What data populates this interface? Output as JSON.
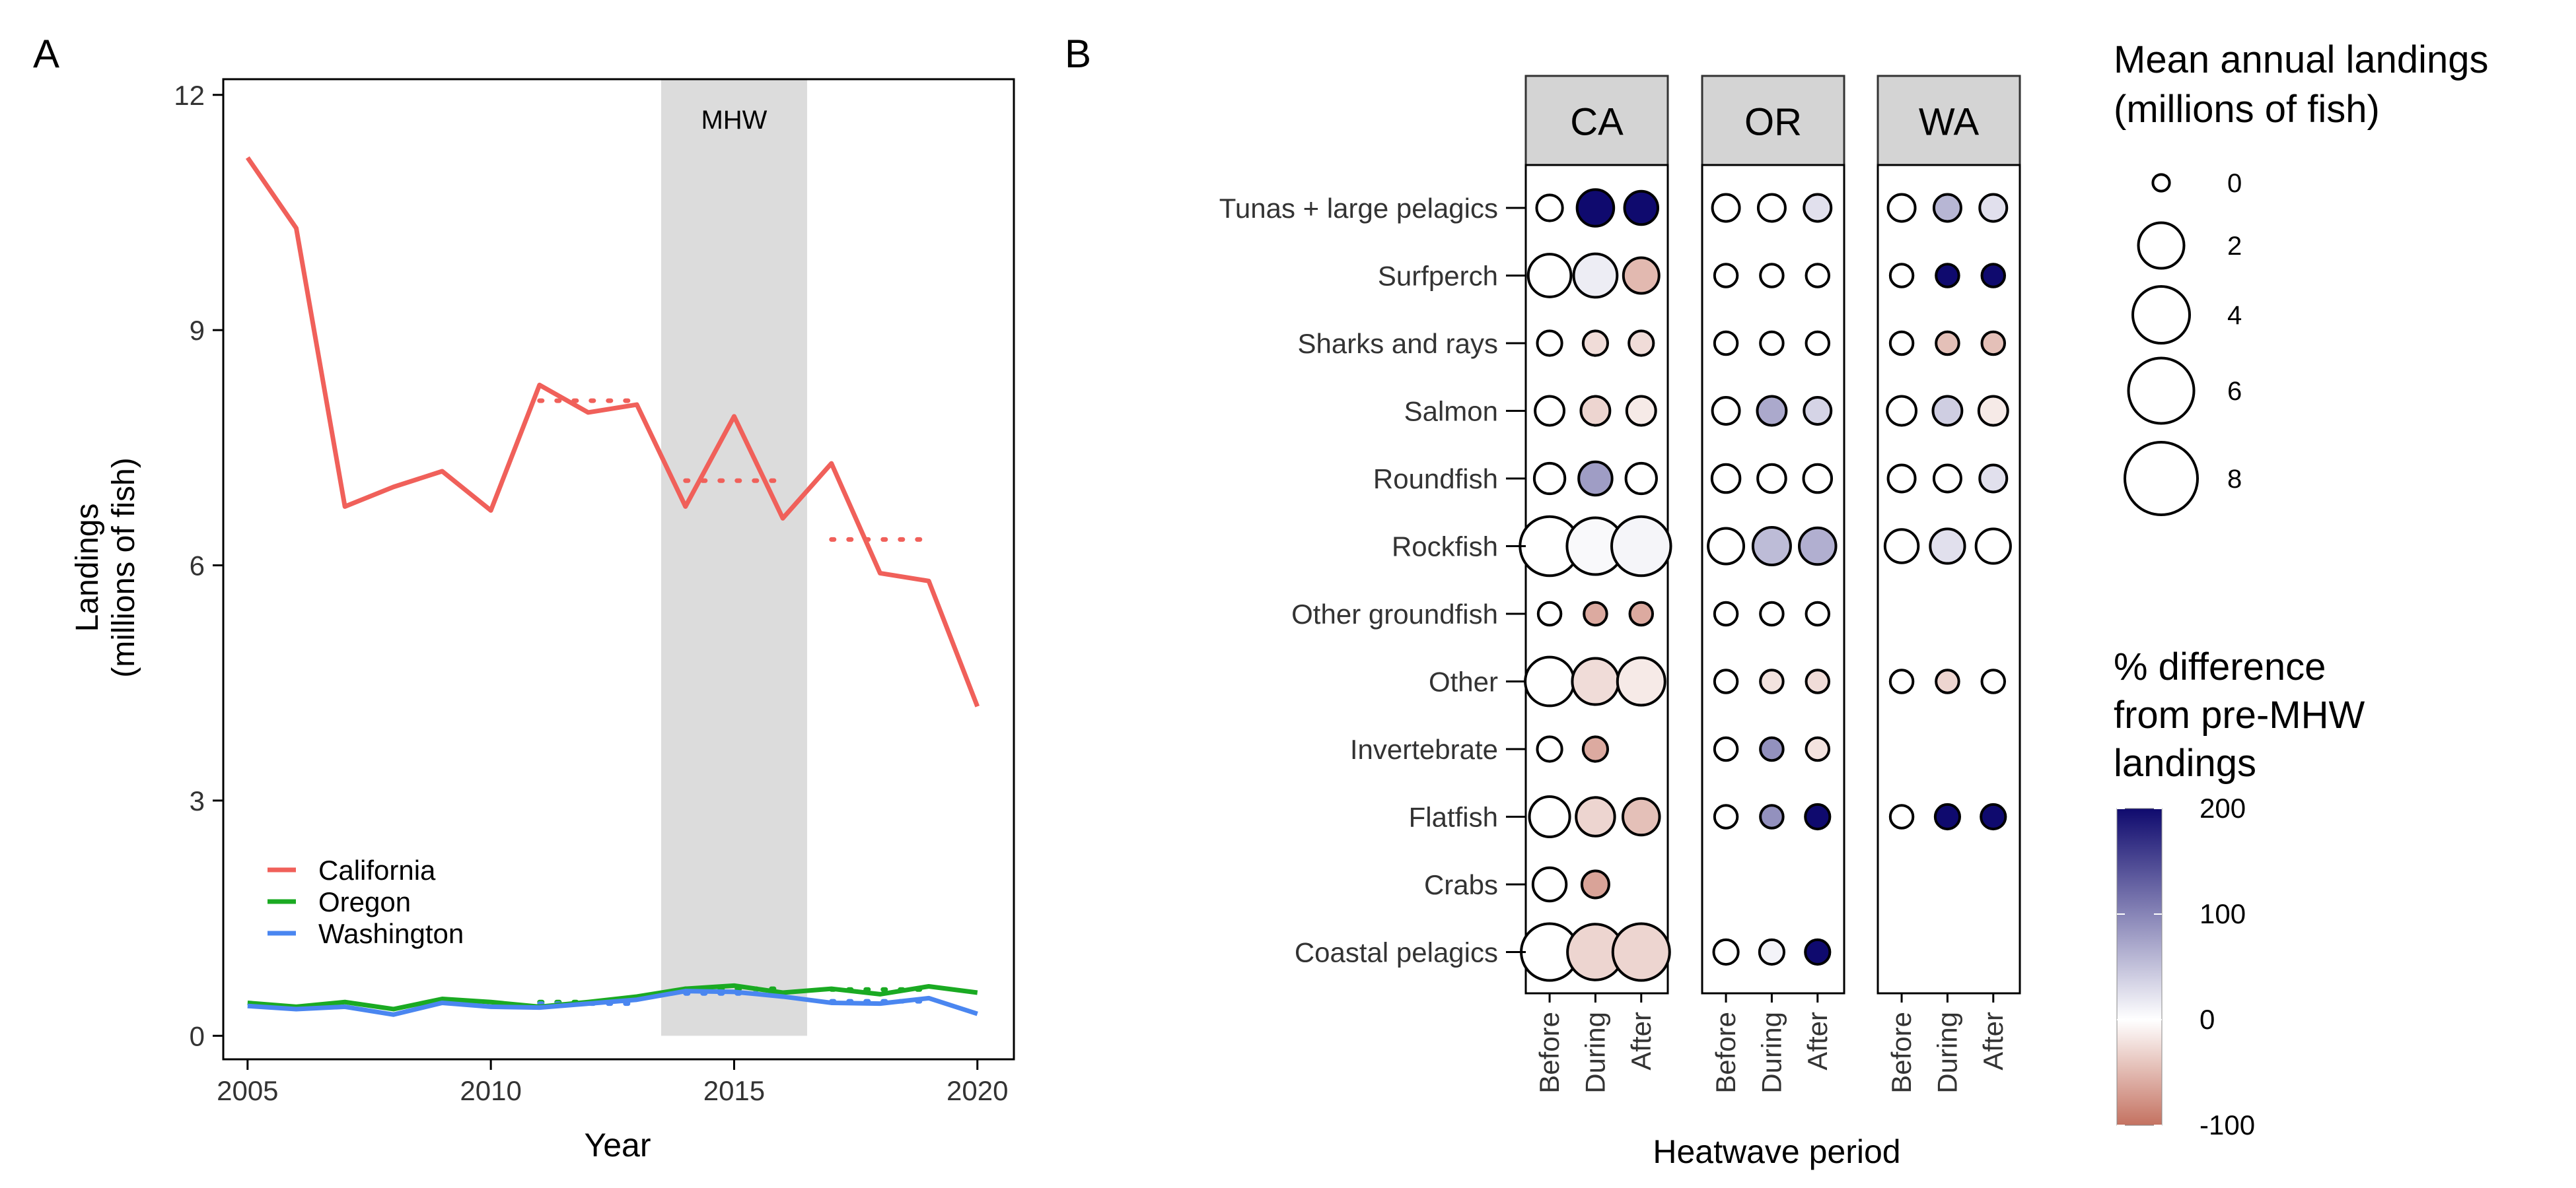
{
  "panel_labels": {
    "a": "A",
    "b": "B"
  },
  "chart_data": [
    {
      "type": "line",
      "panel": "A",
      "xlabel": "Year",
      "ylabel_line1": "Landings",
      "ylabel_line2": "(millions of fish)",
      "xlim": [
        2004.5,
        2020.75
      ],
      "ylim": [
        -0.3,
        12.2
      ],
      "x_ticks": [
        2005,
        2010,
        2015,
        2020
      ],
      "y_ticks": [
        0,
        3,
        6,
        9,
        12
      ],
      "grid": false,
      "legend_position": "bottom-left",
      "shaded_region": {
        "label": "MHW",
        "x_start": 2013.5,
        "x_end": 2016.5,
        "color": "#dcdcdc"
      },
      "x": [
        2005,
        2006,
        2007,
        2008,
        2009,
        2010,
        2011,
        2012,
        2013,
        2014,
        2015,
        2016,
        2017,
        2018,
        2019,
        2020
      ],
      "series": [
        {
          "name": "California",
          "color": "#f0605a",
          "values": [
            11.2,
            10.3,
            6.75,
            7.0,
            7.2,
            6.7,
            8.3,
            7.95,
            8.05,
            6.75,
            7.9,
            6.6,
            7.3,
            5.9,
            5.8,
            4.2
          ],
          "period_means": [
            {
              "x_start": 2011,
              "x_end": 2013,
              "value": 8.1
            },
            {
              "x_start": 2014,
              "x_end": 2016,
              "value": 7.08
            },
            {
              "x_start": 2017,
              "x_end": 2019,
              "value": 6.33
            }
          ]
        },
        {
          "name": "Oregon",
          "color": "#1aaa22",
          "values": [
            0.42,
            0.37,
            0.43,
            0.34,
            0.47,
            0.43,
            0.37,
            0.43,
            0.5,
            0.6,
            0.64,
            0.55,
            0.6,
            0.53,
            0.63,
            0.55
          ],
          "period_means": [
            {
              "x_start": 2011,
              "x_end": 2013,
              "value": 0.43
            },
            {
              "x_start": 2014,
              "x_end": 2016,
              "value": 0.6
            },
            {
              "x_start": 2017,
              "x_end": 2019,
              "value": 0.59
            }
          ]
        },
        {
          "name": "Washington",
          "color": "#4a86f0",
          "values": [
            0.38,
            0.34,
            0.37,
            0.27,
            0.42,
            0.37,
            0.36,
            0.41,
            0.46,
            0.57,
            0.56,
            0.5,
            0.42,
            0.41,
            0.48,
            0.28
          ],
          "period_means": [
            {
              "x_start": 2011,
              "x_end": 2013,
              "value": 0.41
            },
            {
              "x_start": 2014,
              "x_end": 2016,
              "value": 0.54
            },
            {
              "x_start": 2017,
              "x_end": 2019,
              "value": 0.44
            }
          ]
        }
      ]
    },
    {
      "type": "dot_matrix",
      "panel": "B",
      "xlabel": "Heatwave period",
      "facets": [
        "CA",
        "OR",
        "WA"
      ],
      "periods": [
        "Before",
        "During",
        "After"
      ],
      "categories": [
        "Tunas + large pelagics",
        "Surfperch",
        "Sharks and rays",
        "Salmon",
        "Roundfish",
        "Rockfish",
        "Other groundfish",
        "Other",
        "Invertebrate",
        "Flatfish",
        "Crabs",
        "Coastal pelagics"
      ],
      "size_legend": {
        "title_line1": "Mean annual landings",
        "title_line2": "(millions of fish)",
        "values": [
          0,
          2,
          4,
          6,
          8
        ]
      },
      "color_legend": {
        "title_lines": [
          "% difference",
          "from pre-MHW",
          "landings"
        ],
        "ticks": [
          200,
          100,
          0,
          -100
        ],
        "low_color": "#c47261",
        "mid_color": "#ffffff",
        "high_color": "#0f0a6e"
      },
      "points": [
        {
          "facet": "CA",
          "category": "Tunas + large pelagics",
          "period": "Before",
          "landings": 0.15,
          "pct_diff": 0
        },
        {
          "facet": "CA",
          "category": "Tunas + large pelagics",
          "period": "During",
          "landings": 0.9,
          "pct_diff": 200
        },
        {
          "facet": "CA",
          "category": "Tunas + large pelagics",
          "period": "After",
          "landings": 0.6,
          "pct_diff": 200
        },
        {
          "facet": "CA",
          "category": "Surfperch",
          "period": "Before",
          "landings": 1.6,
          "pct_diff": 0
        },
        {
          "facet": "CA",
          "category": "Surfperch",
          "period": "During",
          "landings": 1.7,
          "pct_diff": 15
        },
        {
          "facet": "CA",
          "category": "Surfperch",
          "period": "After",
          "landings": 0.8,
          "pct_diff": -50
        },
        {
          "facet": "CA",
          "category": "Sharks and rays",
          "period": "Before",
          "landings": 0.1,
          "pct_diff": 0
        },
        {
          "facet": "CA",
          "category": "Sharks and rays",
          "period": "During",
          "landings": 0.1,
          "pct_diff": -25
        },
        {
          "facet": "CA",
          "category": "Sharks and rays",
          "period": "After",
          "landings": 0.1,
          "pct_diff": -25
        },
        {
          "facet": "CA",
          "category": "Salmon",
          "period": "Before",
          "landings": 0.3,
          "pct_diff": 0
        },
        {
          "facet": "CA",
          "category": "Salmon",
          "period": "During",
          "landings": 0.3,
          "pct_diff": -30
        },
        {
          "facet": "CA",
          "category": "Salmon",
          "period": "After",
          "landings": 0.3,
          "pct_diff": -15
        },
        {
          "facet": "CA",
          "category": "Roundfish",
          "period": "Before",
          "landings": 0.4,
          "pct_diff": 0
        },
        {
          "facet": "CA",
          "category": "Roundfish",
          "period": "During",
          "landings": 0.6,
          "pct_diff": 80
        },
        {
          "facet": "CA",
          "category": "Roundfish",
          "period": "After",
          "landings": 0.4,
          "pct_diff": 0
        },
        {
          "facet": "CA",
          "category": "Rockfish",
          "period": "Before",
          "landings": 4.5,
          "pct_diff": 0
        },
        {
          "facet": "CA",
          "category": "Rockfish",
          "period": "During",
          "landings": 4.0,
          "pct_diff": 5
        },
        {
          "facet": "CA",
          "category": "Rockfish",
          "period": "After",
          "landings": 4.5,
          "pct_diff": 8
        },
        {
          "facet": "CA",
          "category": "Other groundfish",
          "period": "Before",
          "landings": 0.05,
          "pct_diff": 0
        },
        {
          "facet": "CA",
          "category": "Other groundfish",
          "period": "During",
          "landings": 0.05,
          "pct_diff": -60
        },
        {
          "facet": "CA",
          "category": "Other groundfish",
          "period": "After",
          "landings": 0.05,
          "pct_diff": -60
        },
        {
          "facet": "CA",
          "category": "Other",
          "period": "Before",
          "landings": 2.5,
          "pct_diff": 0
        },
        {
          "facet": "CA",
          "category": "Other",
          "period": "During",
          "landings": 2.1,
          "pct_diff": -25
        },
        {
          "facet": "CA",
          "category": "Other",
          "period": "After",
          "landings": 2.3,
          "pct_diff": -15
        },
        {
          "facet": "CA",
          "category": "Invertebrate",
          "period": "Before",
          "landings": 0.1,
          "pct_diff": 0
        },
        {
          "facet": "CA",
          "category": "Invertebrate",
          "period": "During",
          "landings": 0.1,
          "pct_diff": -60
        },
        {
          "facet": "CA",
          "category": "Flatfish",
          "period": "Before",
          "landings": 1.3,
          "pct_diff": 0
        },
        {
          "facet": "CA",
          "category": "Flatfish",
          "period": "During",
          "landings": 1.1,
          "pct_diff": -30
        },
        {
          "facet": "CA",
          "category": "Flatfish",
          "period": "After",
          "landings": 0.9,
          "pct_diff": -45
        },
        {
          "facet": "CA",
          "category": "Crabs",
          "period": "Before",
          "landings": 0.6,
          "pct_diff": 0
        },
        {
          "facet": "CA",
          "category": "Crabs",
          "period": "During",
          "landings": 0.2,
          "pct_diff": -65
        },
        {
          "facet": "CA",
          "category": "Coastal pelagics",
          "period": "Before",
          "landings": 4.0,
          "pct_diff": 0
        },
        {
          "facet": "CA",
          "category": "Coastal pelagics",
          "period": "During",
          "landings": 3.8,
          "pct_diff": -30
        },
        {
          "facet": "CA",
          "category": "Coastal pelagics",
          "period": "After",
          "landings": 4.0,
          "pct_diff": -30
        },
        {
          "facet": "OR",
          "category": "Tunas + large pelagics",
          "period": "Before",
          "landings": 0.2,
          "pct_diff": 0
        },
        {
          "facet": "OR",
          "category": "Tunas + large pelagics",
          "period": "During",
          "landings": 0.2,
          "pct_diff": 0
        },
        {
          "facet": "OR",
          "category": "Tunas + large pelagics",
          "period": "After",
          "landings": 0.2,
          "pct_diff": 25
        },
        {
          "facet": "OR",
          "category": "Surfperch",
          "period": "Before",
          "landings": 0.05,
          "pct_diff": 0
        },
        {
          "facet": "OR",
          "category": "Surfperch",
          "period": "During",
          "landings": 0.05,
          "pct_diff": 0
        },
        {
          "facet": "OR",
          "category": "Surfperch",
          "period": "After",
          "landings": 0.05,
          "pct_diff": 0
        },
        {
          "facet": "OR",
          "category": "Sharks and rays",
          "period": "Before",
          "landings": 0.05,
          "pct_diff": 0
        },
        {
          "facet": "OR",
          "category": "Sharks and rays",
          "period": "During",
          "landings": 0.05,
          "pct_diff": 0
        },
        {
          "facet": "OR",
          "category": "Sharks and rays",
          "period": "After",
          "landings": 0.05,
          "pct_diff": 0
        },
        {
          "facet": "OR",
          "category": "Salmon",
          "period": "Before",
          "landings": 0.2,
          "pct_diff": 0
        },
        {
          "facet": "OR",
          "category": "Salmon",
          "period": "During",
          "landings": 0.3,
          "pct_diff": 70
        },
        {
          "facet": "OR",
          "category": "Salmon",
          "period": "After",
          "landings": 0.2,
          "pct_diff": 35
        },
        {
          "facet": "OR",
          "category": "Roundfish",
          "period": "Before",
          "landings": 0.25,
          "pct_diff": 0
        },
        {
          "facet": "OR",
          "category": "Roundfish",
          "period": "During",
          "landings": 0.25,
          "pct_diff": 0
        },
        {
          "facet": "OR",
          "category": "Roundfish",
          "period": "After",
          "landings": 0.25,
          "pct_diff": 0
        },
        {
          "facet": "OR",
          "category": "Rockfish",
          "period": "Before",
          "landings": 0.8,
          "pct_diff": 0
        },
        {
          "facet": "OR",
          "category": "Rockfish",
          "period": "During",
          "landings": 1.0,
          "pct_diff": 55
        },
        {
          "facet": "OR",
          "category": "Rockfish",
          "period": "After",
          "landings": 0.9,
          "pct_diff": 65
        },
        {
          "facet": "OR",
          "category": "Other groundfish",
          "period": "Before",
          "landings": 0.05,
          "pct_diff": 0
        },
        {
          "facet": "OR",
          "category": "Other groundfish",
          "period": "During",
          "landings": 0.05,
          "pct_diff": 0
        },
        {
          "facet": "OR",
          "category": "Other groundfish",
          "period": "After",
          "landings": 0.05,
          "pct_diff": 0
        },
        {
          "facet": "OR",
          "category": "Other",
          "period": "Before",
          "landings": 0.05,
          "pct_diff": 0
        },
        {
          "facet": "OR",
          "category": "Other",
          "period": "During",
          "landings": 0.05,
          "pct_diff": -20
        },
        {
          "facet": "OR",
          "category": "Other",
          "period": "After",
          "landings": 0.05,
          "pct_diff": -25
        },
        {
          "facet": "OR",
          "category": "Invertebrate",
          "period": "Before",
          "landings": 0.05,
          "pct_diff": 0
        },
        {
          "facet": "OR",
          "category": "Invertebrate",
          "period": "During",
          "landings": 0.05,
          "pct_diff": 90
        },
        {
          "facet": "OR",
          "category": "Invertebrate",
          "period": "After",
          "landings": 0.05,
          "pct_diff": -20
        },
        {
          "facet": "OR",
          "category": "Flatfish",
          "period": "Before",
          "landings": 0.05,
          "pct_diff": 0
        },
        {
          "facet": "OR",
          "category": "Flatfish",
          "period": "During",
          "landings": 0.05,
          "pct_diff": 90
        },
        {
          "facet": "OR",
          "category": "Flatfish",
          "period": "After",
          "landings": 0.1,
          "pct_diff": 200
        },
        {
          "facet": "OR",
          "category": "Coastal pelagics",
          "period": "Before",
          "landings": 0.1,
          "pct_diff": 0
        },
        {
          "facet": "OR",
          "category": "Coastal pelagics",
          "period": "During",
          "landings": 0.1,
          "pct_diff": 10
        },
        {
          "facet": "OR",
          "category": "Coastal pelagics",
          "period": "After",
          "landings": 0.1,
          "pct_diff": 200
        },
        {
          "facet": "WA",
          "category": "Tunas + large pelagics",
          "period": "Before",
          "landings": 0.2,
          "pct_diff": 0
        },
        {
          "facet": "WA",
          "category": "Tunas + large pelagics",
          "period": "During",
          "landings": 0.2,
          "pct_diff": 60
        },
        {
          "facet": "WA",
          "category": "Tunas + large pelagics",
          "period": "After",
          "landings": 0.2,
          "pct_diff": 25
        },
        {
          "facet": "WA",
          "category": "Surfperch",
          "period": "Before",
          "landings": 0.05,
          "pct_diff": 0
        },
        {
          "facet": "WA",
          "category": "Surfperch",
          "period": "During",
          "landings": 0.05,
          "pct_diff": 200
        },
        {
          "facet": "WA",
          "category": "Surfperch",
          "period": "After",
          "landings": 0.05,
          "pct_diff": 200
        },
        {
          "facet": "WA",
          "category": "Sharks and rays",
          "period": "Before",
          "landings": 0.05,
          "pct_diff": 0
        },
        {
          "facet": "WA",
          "category": "Sharks and rays",
          "period": "During",
          "landings": 0.05,
          "pct_diff": -45
        },
        {
          "facet": "WA",
          "category": "Sharks and rays",
          "period": "After",
          "landings": 0.05,
          "pct_diff": -45
        },
        {
          "facet": "WA",
          "category": "Salmon",
          "period": "Before",
          "landings": 0.3,
          "pct_diff": 0
        },
        {
          "facet": "WA",
          "category": "Salmon",
          "period": "During",
          "landings": 0.3,
          "pct_diff": 40
        },
        {
          "facet": "WA",
          "category": "Salmon",
          "period": "After",
          "landings": 0.3,
          "pct_diff": -15
        },
        {
          "facet": "WA",
          "category": "Roundfish",
          "period": "Before",
          "landings": 0.2,
          "pct_diff": 0
        },
        {
          "facet": "WA",
          "category": "Roundfish",
          "period": "During",
          "landings": 0.2,
          "pct_diff": 0
        },
        {
          "facet": "WA",
          "category": "Roundfish",
          "period": "After",
          "landings": 0.2,
          "pct_diff": 25
        },
        {
          "facet": "WA",
          "category": "Rockfish",
          "period": "Before",
          "landings": 0.6,
          "pct_diff": 0
        },
        {
          "facet": "WA",
          "category": "Rockfish",
          "period": "During",
          "landings": 0.7,
          "pct_diff": 25
        },
        {
          "facet": "WA",
          "category": "Rockfish",
          "period": "After",
          "landings": 0.7,
          "pct_diff": 0
        },
        {
          "facet": "WA",
          "category": "Other",
          "period": "Before",
          "landings": 0.05,
          "pct_diff": 0
        },
        {
          "facet": "WA",
          "category": "Other",
          "period": "During",
          "landings": 0.05,
          "pct_diff": -30
        },
        {
          "facet": "WA",
          "category": "Other",
          "period": "After",
          "landings": 0.05,
          "pct_diff": 0
        },
        {
          "facet": "WA",
          "category": "Flatfish",
          "period": "Before",
          "landings": 0.05,
          "pct_diff": 0
        },
        {
          "facet": "WA",
          "category": "Flatfish",
          "period": "During",
          "landings": 0.1,
          "pct_diff": 200
        },
        {
          "facet": "WA",
          "category": "Flatfish",
          "period": "After",
          "landings": 0.1,
          "pct_diff": 200
        }
      ]
    }
  ]
}
